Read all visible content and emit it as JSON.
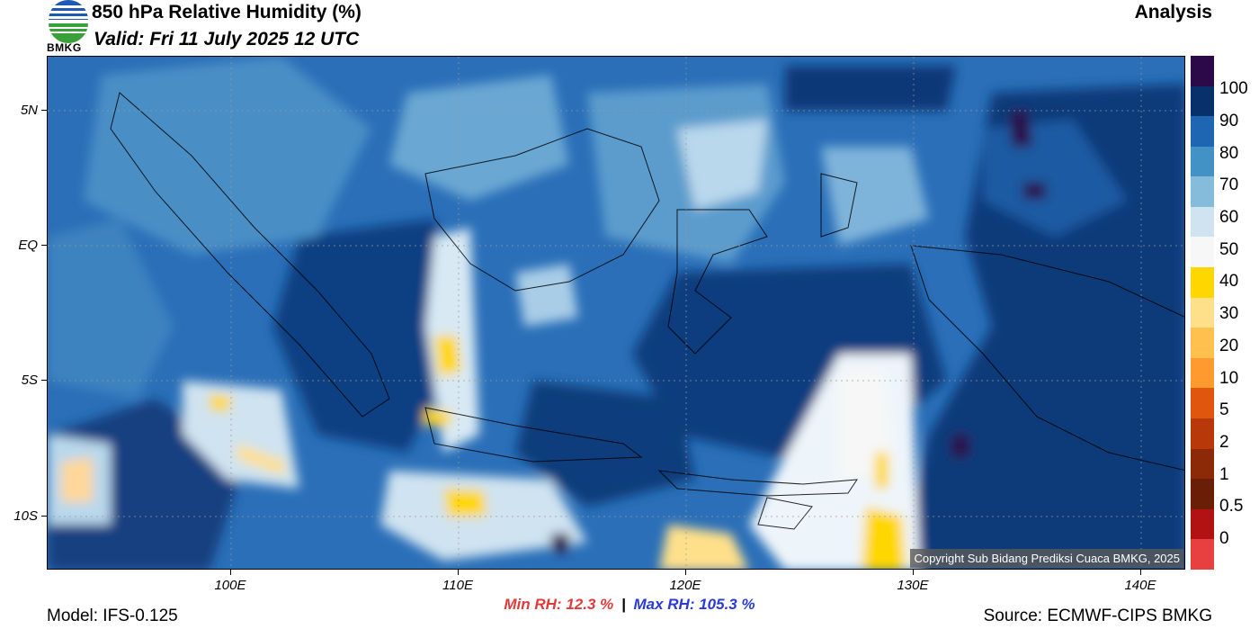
{
  "header": {
    "title": "850 hPa Relative Humidity (%)",
    "valid": "Valid: Fri 11 July 2025 12 UTC",
    "run_type": "Analysis",
    "logo_text": "BMKG"
  },
  "map": {
    "lat_labels": [
      "5N",
      "EQ",
      "5S",
      "10S"
    ],
    "lon_labels": [
      "100E",
      "110E",
      "120E",
      "130E",
      "140E"
    ],
    "copyright": "Copyright Sub Bidang Prediksi Cuaca BMKG, 2025"
  },
  "colorbar": {
    "labels": [
      "100",
      "90",
      "80",
      "70",
      "60",
      "50",
      "40",
      "30",
      "20",
      "10",
      "5",
      "2",
      "1",
      "0.5",
      "0"
    ],
    "colors": [
      "#2c0a4a",
      "#08306b",
      "#1f66b2",
      "#4292c6",
      "#85bbdb",
      "#cfe3f0",
      "#f7f7f7",
      "#ffd700",
      "#ffe08a",
      "#ffc04d",
      "#ff9a2e",
      "#e0560f",
      "#b8380a",
      "#8c2a08",
      "#6a1e06",
      "#b31212",
      "#e84040"
    ]
  },
  "stats": {
    "min": "Min RH:  12.3 %",
    "separator": "|",
    "max": "Max RH: 105.3 %"
  },
  "footer": {
    "model": "Model: IFS-0.125",
    "source": "Source: ECMWF-CIPS BMKG"
  }
}
